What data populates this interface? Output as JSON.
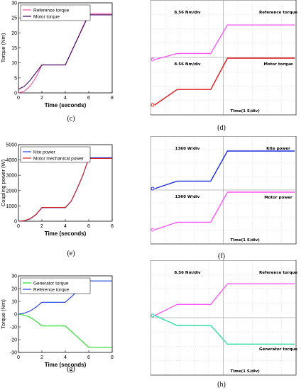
{
  "chart_data": [
    {
      "id": "c",
      "type": "line",
      "panel_label": "(c)",
      "xlabel": "Time (seconds)",
      "ylabel": "Torque (Nm)",
      "xlim": [
        0,
        8
      ],
      "ylim": [
        0,
        30
      ],
      "xticks": [
        0,
        2,
        4,
        6,
        8
      ],
      "yticks": [
        0,
        5,
        10,
        15,
        20,
        25,
        30
      ],
      "legend_position": "top-left",
      "series": [
        {
          "name": "Reference torque",
          "color": "#ff4da6",
          "x": [
            0,
            0.5,
            1,
            1.5,
            2,
            4,
            6,
            8
          ],
          "y": [
            0,
            0.6,
            2.3,
            5.2,
            9.3,
            9.3,
            26.3,
            26.3
          ]
        },
        {
          "name": "Motor torque",
          "color": "#3a0060",
          "x": [
            0,
            0.5,
            1,
            1.5,
            2,
            4,
            6,
            8
          ],
          "y": [
            1.2,
            2.2,
            4.2,
            6.8,
            9.3,
            9.3,
            26,
            26
          ]
        }
      ]
    },
    {
      "id": "e",
      "type": "line",
      "panel_label": "(e)",
      "xlabel": "Time (seconds)",
      "ylabel": "Coupling power (W)",
      "xlim": [
        0,
        8
      ],
      "ylim": [
        0,
        5000
      ],
      "xticks": [
        0,
        2,
        4,
        6,
        8
      ],
      "yticks": [
        0,
        1000,
        2000,
        3000,
        4000,
        5000
      ],
      "legend_position": "top-left",
      "series": [
        {
          "name": "Kite power",
          "color": "#1f3de0",
          "x": [
            0,
            0.5,
            1,
            1.5,
            2,
            4,
            4.5,
            5,
            5.5,
            6,
            8
          ],
          "y": [
            0,
            30,
            150,
            420,
            880,
            880,
            1300,
            2100,
            3000,
            4150,
            4150
          ]
        },
        {
          "name": "Motor mechanical power",
          "color": "#d42020",
          "x": [
            0,
            0.5,
            1,
            1.5,
            2,
            4,
            4.5,
            5,
            5.5,
            6,
            8
          ],
          "y": [
            0,
            40,
            170,
            450,
            900,
            900,
            1320,
            2120,
            3020,
            4100,
            4100
          ]
        }
      ]
    },
    {
      "id": "g",
      "type": "line",
      "panel_label": "(g)",
      "xlabel": "Time (seconds)",
      "ylabel": "Torque (Nm)",
      "xlim": [
        0,
        8
      ],
      "ylim": [
        -30,
        30
      ],
      "xticks": [
        0,
        2,
        4,
        6,
        8
      ],
      "yticks": [
        -30,
        -20,
        -10,
        0,
        10,
        20,
        30
      ],
      "legend_position": "top-left",
      "series": [
        {
          "name": "Generator torque",
          "color": "#22dd22",
          "x": [
            0,
            0.5,
            1,
            1.5,
            2,
            4,
            6,
            8
          ],
          "y": [
            0,
            -0.8,
            -2.5,
            -5.5,
            -9.3,
            -9.3,
            -26,
            -26
          ]
        },
        {
          "name": "Reference torque",
          "color": "#1f3de0",
          "x": [
            0,
            0.5,
            1,
            1.5,
            2,
            4,
            6,
            8
          ],
          "y": [
            0,
            0.8,
            2.5,
            5.5,
            9.3,
            9.3,
            26,
            26
          ]
        }
      ]
    }
  ],
  "scopes": [
    {
      "id": "d",
      "panel_label": "(d)",
      "top_scale": "8.56 Nm/div",
      "top_name": "Reference torque",
      "bottom_scale": "8.56 Nm/div",
      "bottom_name": "Motor torque",
      "time_label": "Time(1 S/div)",
      "top_color": "#ff55ff",
      "bottom_color": "#e01818",
      "top_levels": [
        0,
        0.13,
        0.13,
        0.74,
        0.74
      ],
      "bottom_levels": [
        0,
        0.33,
        0.33,
        1.0,
        1.0
      ]
    },
    {
      "id": "f",
      "panel_label": "(f)",
      "top_scale": "1360 W/div",
      "top_name": "Kite power",
      "bottom_scale": "1360 W/div",
      "bottom_name": "Motor power",
      "time_label": "Time(1 S/div)",
      "top_color": "#1a2ae0",
      "bottom_color": "#ff55ff",
      "top_levels": [
        0,
        0.2,
        0.2,
        1.0,
        1.0
      ],
      "bottom_levels": [
        0,
        0.2,
        0.2,
        1.0,
        1.0
      ]
    },
    {
      "id": "h",
      "panel_label": "(h)",
      "top_scale": "8.56 Nm/div",
      "top_name": "Reference torque",
      "bottom_scale": "",
      "bottom_name": "Generator torque",
      "time_label": "Time(1 S/div)",
      "top_color": "#ff55ff",
      "bottom_color": "#33ddaa",
      "top_levels": [
        0,
        0.28,
        0.28,
        0.8,
        0.8
      ],
      "bottom_levels": [
        0,
        -0.25,
        -0.25,
        -0.72,
        -0.72
      ]
    }
  ]
}
